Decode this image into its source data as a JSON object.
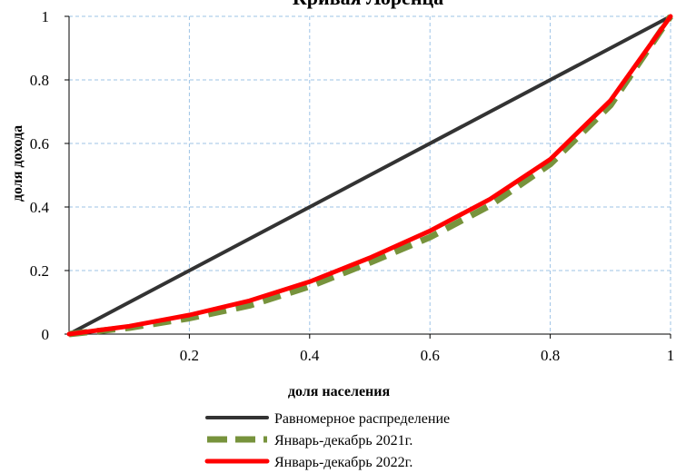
{
  "chart_data": {
    "type": "line",
    "title": "Кривая Лоренца",
    "xlabel": "доля населения",
    "ylabel": "доля дохода",
    "xlim": [
      0,
      1
    ],
    "ylim": [
      0,
      1
    ],
    "x_ticks": [
      "0.2",
      "0.4",
      "0.6",
      "0.8",
      "1"
    ],
    "y_ticks": [
      "0",
      "0.2",
      "0.4",
      "0.6",
      "0.8",
      "1"
    ],
    "grid": true,
    "legend_position": "bottom",
    "series": [
      {
        "name": "Равномерное распределение",
        "color": "#333333",
        "style": "solid",
        "points": [
          [
            0,
            0
          ],
          [
            1,
            1
          ]
        ]
      },
      {
        "name": "Январь-декабрь 2021г.",
        "color": "#77933c",
        "style": "dashed",
        "points": [
          [
            0,
            0
          ],
          [
            0.1,
            0.02
          ],
          [
            0.2,
            0.05
          ],
          [
            0.3,
            0.09
          ],
          [
            0.4,
            0.15
          ],
          [
            0.5,
            0.225
          ],
          [
            0.6,
            0.305
          ],
          [
            0.7,
            0.405
          ],
          [
            0.8,
            0.535
          ],
          [
            0.9,
            0.72
          ],
          [
            1,
            1
          ]
        ]
      },
      {
        "name": "Январь-декабрь 2022г.",
        "color": "#ff0000",
        "style": "solid",
        "points": [
          [
            0,
            0
          ],
          [
            0.1,
            0.025
          ],
          [
            0.2,
            0.06
          ],
          [
            0.3,
            0.105
          ],
          [
            0.4,
            0.165
          ],
          [
            0.5,
            0.24
          ],
          [
            0.6,
            0.325
          ],
          [
            0.7,
            0.425
          ],
          [
            0.8,
            0.55
          ],
          [
            0.9,
            0.735
          ],
          [
            1,
            1
          ]
        ]
      }
    ]
  }
}
